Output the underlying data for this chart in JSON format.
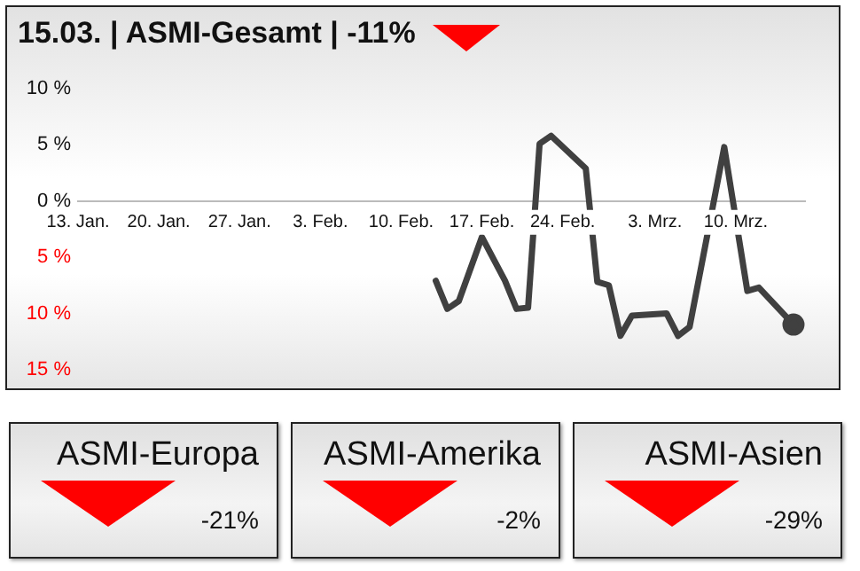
{
  "chart_data": [
    {
      "type": "line",
      "title": "15.03. | ASMI-Gesamt | -11%",
      "x": [
        "--02-13",
        "--02-14",
        "--02-15",
        "--02-17",
        "--02-19",
        "--02-20",
        "--02-21",
        "--02-22",
        "--02-23",
        "--02-26",
        "--02-27",
        "--02-28",
        "--02-29",
        "--03-01",
        "--03-04",
        "--03-05",
        "--03-06",
        "--03-09",
        "--03-11",
        "--03-12",
        "--03-14",
        "--03-15"
      ],
      "series": [
        {
          "color": "#404040",
          "values": [
            -7.1,
            -9.6,
            -8.9,
            -3.2,
            -7.1,
            -9.6,
            -9.5,
            5.1,
            5.8,
            2.9,
            -7.2,
            -7.5,
            -12,
            -10.2,
            -10,
            -12,
            -11.2,
            4.8,
            -8,
            -7.7,
            -9.9,
            -11
          ]
        }
      ],
      "xlim": [
        "--01-13",
        "--03-16"
      ],
      "xticks": [
        {
          "value": "--01-13",
          "label": "13. Jan."
        },
        {
          "value": "--01-20",
          "label": "20. Jan."
        },
        {
          "value": "--01-27",
          "label": "27. Jan."
        },
        {
          "value": "--02-03",
          "label": "3. Feb."
        },
        {
          "value": "--02-10",
          "label": "10. Feb."
        },
        {
          "value": "--02-17",
          "label": "17. Feb."
        },
        {
          "value": "--02-24",
          "label": "24. Feb."
        },
        {
          "value": "--03-03",
          "label": "3. Mrz."
        },
        {
          "value": "--03-10",
          "label": "10. Mrz."
        }
      ],
      "ylim": [
        -15,
        10
      ],
      "yticks": [
        {
          "value": 10,
          "label": "10 %"
        },
        {
          "value": 5,
          "label": "5 %"
        },
        {
          "value": 0,
          "label": "0 %"
        },
        {
          "value": -5,
          "label": "5 %"
        },
        {
          "value": -10,
          "label": "10 %"
        },
        {
          "value": -15,
          "label": "15 %"
        }
      ],
      "grid": false,
      "legend": false,
      "line_style": "solid"
    },
    {
      "type": "other",
      "title": "ASMI-Europa",
      "annotations": [
        "-21%"
      ]
    },
    {
      "type": "other",
      "title": "ASMI-Amerika",
      "annotations": [
        "-2%"
      ]
    },
    {
      "type": "other",
      "title": "ASMI-Asien",
      "annotations": [
        "-29%"
      ]
    }
  ]
}
